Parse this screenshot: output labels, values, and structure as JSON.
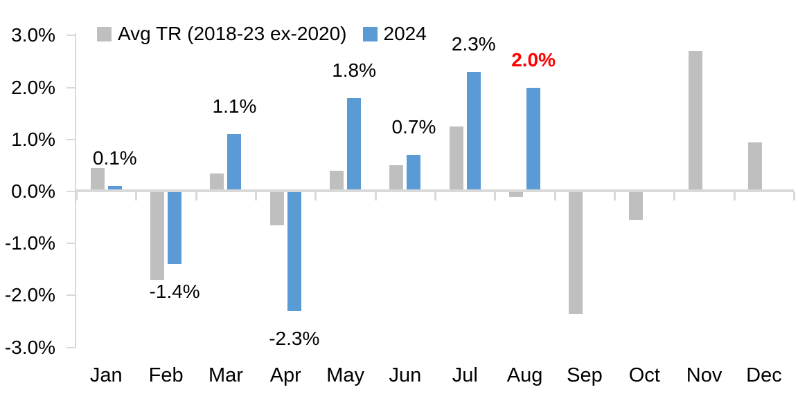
{
  "chart_data": {
    "type": "bar",
    "title": "",
    "xlabel": "",
    "ylabel": "",
    "categories": [
      "Jan",
      "Feb",
      "Mar",
      "Apr",
      "May",
      "Jun",
      "Jul",
      "Aug",
      "Sep",
      "Oct",
      "Nov",
      "Dec"
    ],
    "series": [
      {
        "name": "Avg TR (2018-23 ex-2020)",
        "color": "#bfbfbf",
        "values": [
          0.45,
          -1.7,
          0.35,
          -0.65,
          0.4,
          0.5,
          1.25,
          -0.1,
          -2.35,
          -0.55,
          2.7,
          0.95
        ]
      },
      {
        "name": "2024",
        "color": "#5b9bd5",
        "values": [
          0.1,
          -1.4,
          1.1,
          -2.3,
          1.8,
          0.7,
          2.3,
          2.0,
          null,
          null,
          null,
          null
        ]
      }
    ],
    "ylim": [
      -3.0,
      3.0
    ],
    "y_ticks": [
      {
        "label": "3.0%",
        "value": 3
      },
      {
        "label": "2.0%",
        "value": 2
      },
      {
        "label": "1.0%",
        "value": 1
      },
      {
        "label": "0.0%",
        "value": 0
      },
      {
        "label": "-1.0%",
        "value": -1
      },
      {
        "label": "-2.0%",
        "value": -2
      },
      {
        "label": "-3.0%",
        "value": -3
      }
    ],
    "grid": false,
    "legend_position": "top",
    "axis_color": "#d9d9d9",
    "text_color": "#000000",
    "highlight_color": "#ff0000",
    "data_labels": [
      {
        "category": "Jan",
        "series": "2024",
        "text": "0.1%",
        "color": "#000000",
        "bold": false,
        "side": "above"
      },
      {
        "category": "Feb",
        "series": "2024",
        "text": "-1.4%",
        "color": "#000000",
        "bold": false,
        "side": "below"
      },
      {
        "category": "Mar",
        "series": "2024",
        "text": "1.1%",
        "color": "#000000",
        "bold": false,
        "side": "above"
      },
      {
        "category": "Apr",
        "series": "2024",
        "text": "-2.3%",
        "color": "#000000",
        "bold": false,
        "side": "below"
      },
      {
        "category": "May",
        "series": "2024",
        "text": "1.8%",
        "color": "#000000",
        "bold": false,
        "side": "above"
      },
      {
        "category": "Jun",
        "series": "2024",
        "text": "0.7%",
        "color": "#000000",
        "bold": false,
        "side": "above"
      },
      {
        "category": "Jul",
        "series": "2024",
        "text": "2.3%",
        "color": "#000000",
        "bold": false,
        "side": "above"
      },
      {
        "category": "Aug",
        "series": "2024",
        "text": "2.0%",
        "color": "#ff0000",
        "bold": true,
        "side": "above"
      }
    ]
  }
}
